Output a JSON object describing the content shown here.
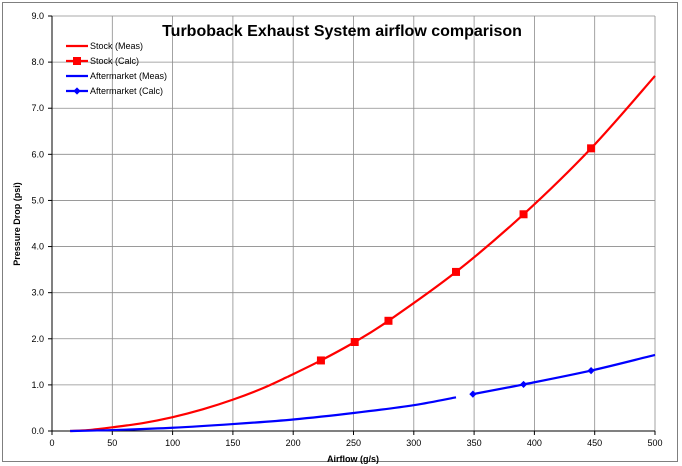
{
  "chart_data": {
    "type": "line",
    "title": "Turboback Exhaust System airflow comparison",
    "xlabel": "Airflow (g/s)",
    "ylabel": "Pressure Drop (psi)",
    "xlim": [
      0,
      500
    ],
    "ylim": [
      0,
      9
    ],
    "x_ticks": [
      0,
      50,
      100,
      150,
      200,
      250,
      300,
      350,
      400,
      450,
      500
    ],
    "y_ticks": [
      "0.0",
      "1.0",
      "2.0",
      "3.0",
      "4.0",
      "5.0",
      "6.0",
      "7.0",
      "8.0",
      "9.0"
    ],
    "grid": true,
    "legend_position": "top-left",
    "series": [
      {
        "name": "Stock (Meas)",
        "color": "#ff0000",
        "marker": "none",
        "x": [
          15,
          30,
          50,
          75,
          100,
          125,
          150,
          175,
          195
        ],
        "y": [
          0.0,
          0.02,
          0.08,
          0.17,
          0.3,
          0.47,
          0.68,
          0.93,
          1.17
        ]
      },
      {
        "name": "Stock (Calc)",
        "color": "#ff0000",
        "marker": "square",
        "x": [
          195,
          223,
          251,
          279,
          335,
          391,
          447,
          500
        ],
        "y": [
          1.17,
          1.53,
          1.93,
          2.39,
          3.45,
          4.7,
          6.13,
          7.7
        ]
      },
      {
        "name": "Aftermarket (Meas)",
        "color": "#0000ff",
        "marker": "none",
        "x": [
          15,
          50,
          100,
          150,
          200,
          250,
          300,
          335
        ],
        "y": [
          0.0,
          0.02,
          0.07,
          0.15,
          0.25,
          0.39,
          0.56,
          0.73
        ]
      },
      {
        "name": "Aftermarket (Calc)",
        "color": "#0000ff",
        "marker": "diamond",
        "x": [
          349,
          391,
          447,
          500
        ],
        "y": [
          0.8,
          1.01,
          1.31,
          1.65
        ]
      }
    ]
  }
}
